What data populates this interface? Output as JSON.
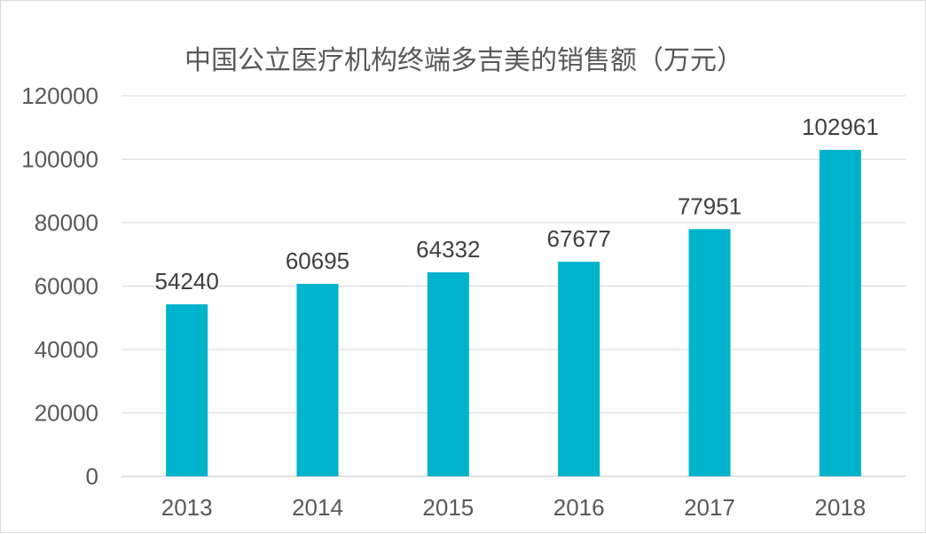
{
  "chart_data": {
    "type": "bar",
    "title": "中国公立医疗机构终端多吉美的销售额（万元）",
    "categories": [
      "2013",
      "2014",
      "2015",
      "2016",
      "2017",
      "2018"
    ],
    "values": [
      54240,
      60695,
      64332,
      67677,
      77951,
      102961
    ],
    "data_labels": [
      "54240",
      "60695",
      "64332",
      "67677",
      "77951",
      "102961"
    ],
    "ylim": [
      0,
      120000
    ],
    "y_ticks": [
      "0",
      "20000",
      "40000",
      "60000",
      "80000",
      "100000",
      "120000"
    ],
    "xlabel": "",
    "ylabel": "",
    "grid": true,
    "legend": "none",
    "bar_color": "#00B3CC"
  }
}
